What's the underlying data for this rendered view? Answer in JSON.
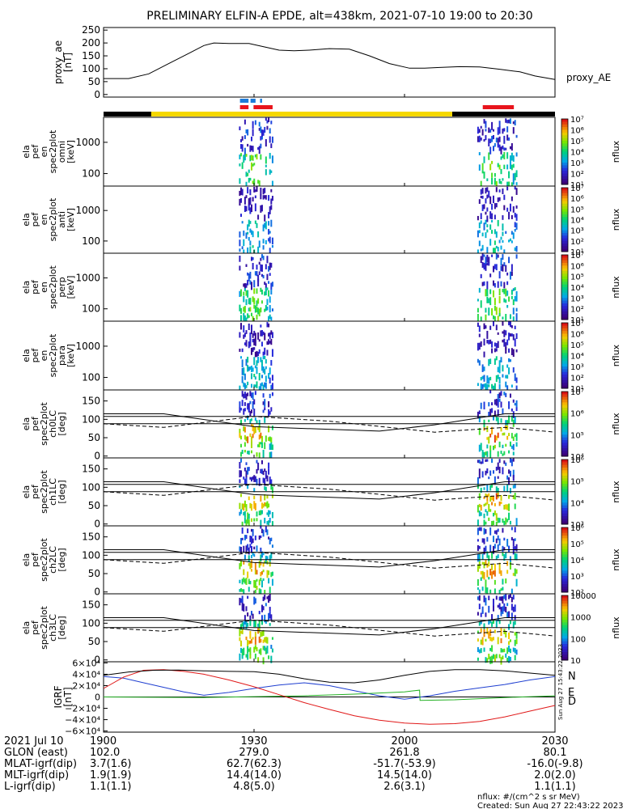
{
  "title": "PRELIMINARY ELFIN-A EPDE, alt=438km, 2021-07-10 19:00 to 20:30",
  "colors": {
    "bar_yellow": "#f5d800",
    "bar_black": "#000000",
    "marker_blue": "#1e7bd8",
    "marker_red": "#e8141c",
    "grf_n": "#1f3fd0",
    "grf_e": "#22b022",
    "grf_d": "#e01818"
  },
  "top_bars": {
    "blue_segments_min": [
      [
        27.2,
        28.9
      ],
      [
        29.3,
        30.3
      ],
      [
        31.2,
        31.6
      ]
    ],
    "red_segments_min": [
      [
        27.2,
        28.9
      ],
      [
        29.9,
        33.7
      ],
      [
        75.6,
        81.8
      ]
    ],
    "black_segments_min": [
      [
        0,
        9.5
      ],
      [
        69.5,
        90
      ]
    ],
    "yellow_segments_min": [
      [
        9.5,
        69.5
      ]
    ]
  },
  "chart_data": [
    {
      "type": "line",
      "panel": "proxy_ae",
      "ylabel": "proxy_ae [nT]",
      "legend": "proxy_AE",
      "ylim": [
        -10,
        260
      ],
      "yticks": [
        "250",
        "200",
        "150",
        "100",
        "50",
        "0"
      ],
      "x": [
        0,
        5,
        9,
        13,
        17,
        20,
        22,
        25,
        29,
        32,
        35,
        38,
        41,
        45,
        49,
        53,
        57,
        61,
        64,
        67,
        71,
        75,
        79,
        83,
        86,
        90
      ],
      "y": [
        62,
        62,
        80,
        120,
        160,
        190,
        200,
        198,
        198,
        185,
        172,
        170,
        172,
        178,
        176,
        150,
        120,
        102,
        102,
        105,
        108,
        107,
        98,
        88,
        72,
        58
      ]
    },
    {
      "type": "heatmap",
      "panel": "spec2plot omni",
      "ylabel": "ela pef en spec2plot omni [keV]",
      "yticks": [
        "1000",
        "100"
      ],
      "colorbar": [
        "10⁷",
        "10⁶",
        "10⁵",
        "10⁴",
        "10³",
        "10²",
        "10¹"
      ],
      "colorbar_label": "nflux"
    },
    {
      "type": "heatmap",
      "panel": "spec2plot anti",
      "ylabel": "ela pef en spec2plot anti [keV]",
      "yticks": [
        "1000",
        "100"
      ],
      "colorbar": [
        "10⁷",
        "10⁶",
        "10⁵",
        "10⁴",
        "10³",
        "10²",
        "10¹"
      ],
      "colorbar_label": "nflux"
    },
    {
      "type": "heatmap",
      "panel": "spec2plot perp",
      "ylabel": "ela pef en spec2plot perp [keV]",
      "yticks": [
        "1000",
        "100"
      ],
      "colorbar": [
        "10⁷",
        "10⁶",
        "10⁵",
        "10⁴",
        "10³",
        "10²",
        "10¹"
      ],
      "colorbar_label": "nflux"
    },
    {
      "type": "heatmap",
      "panel": "spec2plot para",
      "ylabel": "ela pef en spec2plot para [keV]",
      "yticks": [
        "1000",
        "100"
      ],
      "colorbar": [
        "10⁷",
        "10⁶",
        "10⁵",
        "10⁴",
        "10³",
        "10²",
        "10¹"
      ],
      "colorbar_label": "nflux"
    },
    {
      "type": "heatmap",
      "panel": "ch0LC",
      "ylabel": "ela pef spec2plot ch0LC [deg]",
      "yticks": [
        "150",
        "100",
        "50",
        "0"
      ],
      "colorbar": [
        "10⁷",
        "10⁶",
        "10⁵",
        "10⁴"
      ],
      "colorbar_label": "nflux"
    },
    {
      "type": "heatmap",
      "panel": "ch1LC",
      "ylabel": "ela pef spec2plot ch1LC [deg]",
      "yticks": [
        "150",
        "100",
        "50",
        "0"
      ],
      "colorbar": [
        "10⁶",
        "10⁵",
        "10⁴",
        "10³"
      ],
      "colorbar_label": "nflux"
    },
    {
      "type": "heatmap",
      "panel": "ch2LC",
      "ylabel": "ela pef spec2plot ch2LC [deg]",
      "yticks": [
        "150",
        "100",
        "50",
        "0"
      ],
      "colorbar": [
        "10⁶",
        "10⁵",
        "10⁴",
        "10³",
        "10²"
      ],
      "colorbar_label": "nflux"
    },
    {
      "type": "heatmap",
      "panel": "ch3LC",
      "ylabel": "ela pef spec2plot ch3LC [deg]",
      "yticks": [
        "150",
        "100",
        "50",
        "0"
      ],
      "colorbar": [
        "10000",
        "1000",
        "100",
        "10"
      ],
      "colorbar_label": "nflux"
    },
    {
      "type": "line",
      "panel": "IGRF",
      "ylabel": "IGRF [nT]",
      "ylim": [
        -62000,
        62000
      ],
      "yticks": [
        "6×10⁴",
        "4×10⁴",
        "2×10⁴",
        "0",
        "−2×10⁴",
        "−4×10⁴",
        "−6×10⁴"
      ],
      "series": [
        {
          "name": "N",
          "x": [
            0,
            4,
            8,
            12,
            16,
            20,
            25,
            30,
            35,
            40,
            45,
            50,
            55,
            60,
            65,
            70,
            75,
            80,
            85,
            90
          ],
          "y": [
            36000,
            33000,
            25000,
            17000,
            9000,
            3000,
            8000,
            15000,
            21000,
            25000,
            20000,
            11000,
            2000,
            -4000,
            2000,
            10000,
            16000,
            22000,
            30000,
            36000
          ]
        },
        {
          "name": "E",
          "x": [
            0,
            10,
            20,
            30,
            40,
            50,
            60,
            63,
            63.1,
            70,
            80,
            90
          ],
          "y": [
            0,
            -500,
            -1000,
            500,
            2000,
            5000,
            9000,
            12000,
            -6000,
            -5000,
            -1000,
            2000
          ]
        },
        {
          "name": "D",
          "x": [
            0,
            4,
            8,
            12,
            16,
            20,
            25,
            30,
            35,
            40,
            45,
            50,
            55,
            60,
            65,
            70,
            75,
            80,
            85,
            90
          ],
          "y": [
            15000,
            35000,
            47000,
            48000,
            45000,
            40000,
            30000,
            18000,
            4000,
            -10000,
            -22000,
            -33000,
            -41000,
            -46000,
            -48000,
            -47000,
            -43000,
            -35000,
            -25000,
            -15000
          ]
        },
        {
          "name": "|B|",
          "x": [
            0,
            5,
            10,
            15,
            20,
            25,
            30,
            35,
            40,
            45,
            50,
            55,
            60,
            65,
            70,
            75,
            80,
            85,
            90
          ],
          "y": [
            38000,
            44000,
            47000,
            47500,
            46000,
            45000,
            44500,
            40000,
            32000,
            26000,
            25000,
            30000,
            38000,
            45000,
            48000,
            48000,
            46000,
            42000,
            38000
          ]
        }
      ],
      "legend": [
        "N",
        "E",
        "D"
      ],
      "side_note": "Sun Aug 27 15:43:22 2023"
    }
  ],
  "x_axis": {
    "tick_labels": [
      "1900",
      "1930",
      "2000",
      "2030"
    ],
    "tick_minutes": [
      0,
      30,
      60,
      90
    ]
  },
  "footer_rows": [
    {
      "label": "2021 Jul 10",
      "values": [
        "1900",
        "1930",
        "2000",
        "2030"
      ]
    },
    {
      "label": "GLON (east)",
      "values": [
        "102.0",
        "279.0",
        "261.8",
        "80.1"
      ]
    },
    {
      "label": "MLAT-igrf(dip)",
      "values": [
        "3.7(1.6)",
        "62.7(62.3)",
        "-51.7(-53.9)",
        "-16.0(-9.8)"
      ]
    },
    {
      "label": "MLT-igrf(dip)",
      "values": [
        "1.9(1.9)",
        "14.4(14.0)",
        "14.5(14.0)",
        "2.0(2.0)"
      ]
    },
    {
      "label": "L-igrf(dip)",
      "values": [
        "1.1(1.1)",
        "4.8(5.0)",
        "2.6(3.1)",
        "1.1(1.1)"
      ]
    }
  ],
  "footnote": {
    "units": "nflux: #/(cm^2 s sr MeV)",
    "created": "Created: Sun Aug 27 22:43:22 2023"
  }
}
